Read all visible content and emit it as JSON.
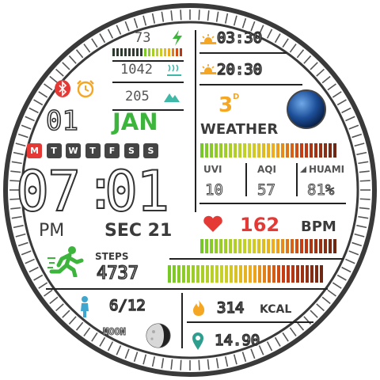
{
  "battery": {
    "value": "73"
  },
  "pressure": {
    "value": "1042"
  },
  "altitude": {
    "value": "205"
  },
  "sun": {
    "sunrise": "03:30",
    "sunset": "20:30"
  },
  "date": {
    "day": "01",
    "month": "JAN"
  },
  "week": {
    "days": [
      "M",
      "T",
      "W",
      "T",
      "F",
      "S",
      "S"
    ],
    "active_index": 0
  },
  "time": {
    "hours": "07",
    "minutes": "01",
    "ampm": "PM",
    "seconds_label": "SEC 21"
  },
  "weather": {
    "temp": "3",
    "unit": "D",
    "label": "WEATHER"
  },
  "metrics": {
    "uvi_label": "UVI",
    "uvi_value": "10",
    "aqi_label": "AQI",
    "aqi_value": "57",
    "humid_label": "HUAMI",
    "humid_value": "81%"
  },
  "heart": {
    "value": "162",
    "unit": "BPM"
  },
  "steps": {
    "label": "STEPS",
    "value": "4737"
  },
  "moon": {
    "phase": "6/12",
    "label": "MOON"
  },
  "calories": {
    "value": "314",
    "unit": "KCAL"
  },
  "distance": {
    "value": "14.90"
  },
  "colors": {
    "green": "#3db53d",
    "red": "#e53935",
    "orange": "#f5a623",
    "teal": "#3fb8a8",
    "dark": "#222222"
  }
}
